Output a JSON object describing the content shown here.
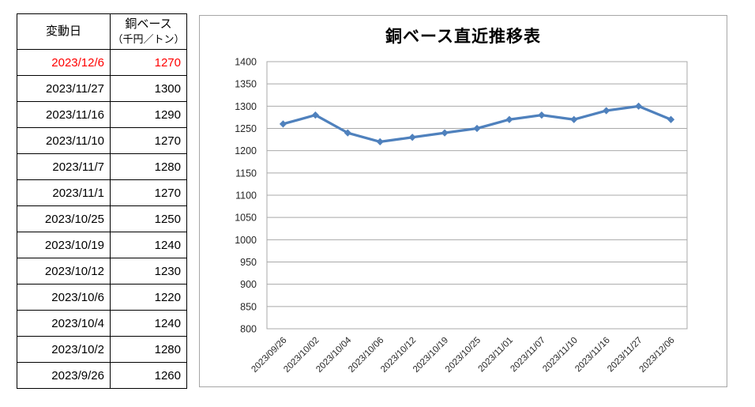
{
  "table": {
    "header": {
      "date_label": "変動日",
      "value_label_line1": "銅ベース",
      "value_label_line2": "（千円／トン）"
    },
    "rows": [
      {
        "date": "2023/12/6",
        "value": "1270",
        "highlight": true
      },
      {
        "date": "2023/11/27",
        "value": "1300"
      },
      {
        "date": "2023/11/16",
        "value": "1290"
      },
      {
        "date": "2023/11/10",
        "value": "1270"
      },
      {
        "date": "2023/11/7",
        "value": "1280"
      },
      {
        "date": "2023/11/1",
        "value": "1270"
      },
      {
        "date": "2023/10/25",
        "value": "1250"
      },
      {
        "date": "2023/10/19",
        "value": "1240"
      },
      {
        "date": "2023/10/12",
        "value": "1230"
      },
      {
        "date": "2023/10/6",
        "value": "1220"
      },
      {
        "date": "2023/10/4",
        "value": "1240"
      },
      {
        "date": "2023/10/2",
        "value": "1280"
      },
      {
        "date": "2023/9/26",
        "value": "1260"
      }
    ]
  },
  "chart_data": {
    "type": "line",
    "title": "銅ベース直近推移表",
    "categories": [
      "2023/09/26",
      "2023/10/02",
      "2023/10/04",
      "2023/10/06",
      "2023/10/12",
      "2023/10/19",
      "2023/10/25",
      "2023/11/01",
      "2023/11/07",
      "2023/11/10",
      "2023/11/16",
      "2023/11/27",
      "2023/12/06"
    ],
    "values": [
      1260,
      1280,
      1240,
      1220,
      1230,
      1240,
      1250,
      1270,
      1280,
      1270,
      1290,
      1300,
      1270
    ],
    "ylabel": "",
    "xlabel": "",
    "ylim": [
      800,
      1400
    ],
    "ytick_step": 50,
    "grid": true,
    "legend": "none",
    "marker": "diamond"
  },
  "colors": {
    "series": "#4F81BD",
    "highlight_text": "#FF0000",
    "gridline": "#A9A9A9",
    "chart_border": "#A6A6A6",
    "axis_text": "#262626",
    "table_border": "#000000"
  }
}
